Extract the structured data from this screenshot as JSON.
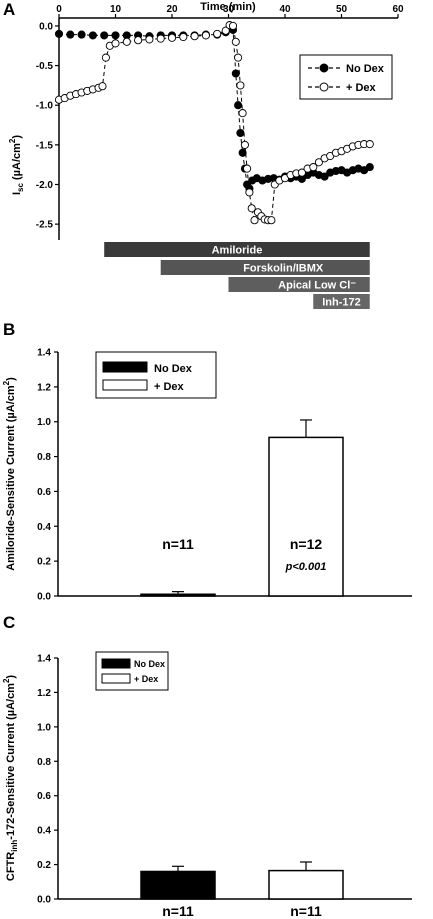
{
  "panels": {
    "a": {
      "letter": "A"
    },
    "b": {
      "letter": "B"
    },
    "c": {
      "letter": "C"
    }
  },
  "chart_data": [
    {
      "type": "line",
      "panel": "A",
      "xlabel": "Time (min)",
      "ylabel_main": "I",
      "ylabel_sub": "sc",
      "ylabel_rest": " (µA/cm",
      "ylabel_sup": "2",
      "ylabel_end": ")",
      "xlim": [
        0,
        60
      ],
      "ylim": [
        -2.7,
        0.1
      ],
      "xticks": [
        "0",
        "10",
        "20",
        "30",
        "40",
        "50",
        "60"
      ],
      "yticks": [
        "0.0",
        "-0.5",
        "-1.0",
        "-1.5",
        "-2.0",
        "-2.5"
      ],
      "grid": false,
      "legend_position": "top-right",
      "series": [
        {
          "name": "No Dex",
          "marker": "filled",
          "points": [
            [
              0,
              -0.1
            ],
            [
              2,
              -0.11
            ],
            [
              4,
              -0.11
            ],
            [
              6,
              -0.12
            ],
            [
              8,
              -0.12
            ],
            [
              10,
              -0.12
            ],
            [
              12,
              -0.12
            ],
            [
              14,
              -0.12
            ],
            [
              16,
              -0.13
            ],
            [
              18,
              -0.12
            ],
            [
              20,
              -0.12
            ],
            [
              22,
              -0.12
            ],
            [
              24,
              -0.12
            ],
            [
              26,
              -0.11
            ],
            [
              28,
              -0.11
            ],
            [
              29.5,
              -0.08
            ],
            [
              30.2,
              -0.02
            ],
            [
              30.8,
              -0.05
            ],
            [
              31.3,
              -0.6
            ],
            [
              31.7,
              -1.0
            ],
            [
              32.1,
              -1.35
            ],
            [
              32.5,
              -1.6
            ],
            [
              32.9,
              -1.8
            ],
            [
              33.3,
              -2.0
            ],
            [
              33.7,
              -2.05
            ],
            [
              34.2,
              -1.95
            ],
            [
              35,
              -1.92
            ],
            [
              36,
              -1.95
            ],
            [
              37,
              -1.93
            ],
            [
              38,
              -1.92
            ],
            [
              39,
              -1.94
            ],
            [
              40,
              -1.9
            ],
            [
              41,
              -1.92
            ],
            [
              42,
              -1.9
            ],
            [
              43,
              -1.93
            ],
            [
              44,
              -1.88
            ],
            [
              45,
              -1.85
            ],
            [
              46,
              -1.88
            ],
            [
              47,
              -1.9
            ],
            [
              48,
              -1.85
            ],
            [
              49,
              -1.83
            ],
            [
              50,
              -1.82
            ],
            [
              51,
              -1.85
            ],
            [
              52,
              -1.82
            ],
            [
              53,
              -1.8
            ],
            [
              54,
              -1.82
            ],
            [
              55,
              -1.78
            ]
          ]
        },
        {
          "name": "+ Dex",
          "marker": "open",
          "points": [
            [
              0,
              -0.93
            ],
            [
              1,
              -0.91
            ],
            [
              2,
              -0.88
            ],
            [
              3,
              -0.86
            ],
            [
              4,
              -0.84
            ],
            [
              5,
              -0.82
            ],
            [
              6,
              -0.8
            ],
            [
              7,
              -0.78
            ],
            [
              7.7,
              -0.76
            ],
            [
              8.3,
              -0.4
            ],
            [
              9,
              -0.25
            ],
            [
              10,
              -0.22
            ],
            [
              12,
              -0.2
            ],
            [
              14,
              -0.18
            ],
            [
              16,
              -0.17
            ],
            [
              18,
              -0.16
            ],
            [
              20,
              -0.15
            ],
            [
              22,
              -0.14
            ],
            [
              24,
              -0.13
            ],
            [
              26,
              -0.12
            ],
            [
              28,
              -0.1
            ],
            [
              29.5,
              -0.06
            ],
            [
              30.2,
              0.01
            ],
            [
              30.8,
              0.0
            ],
            [
              31.3,
              -0.2
            ],
            [
              31.7,
              -0.4
            ],
            [
              32.1,
              -0.75
            ],
            [
              32.5,
              -1.1
            ],
            [
              32.9,
              -1.5
            ],
            [
              33.3,
              -1.8
            ],
            [
              33.7,
              -2.1
            ],
            [
              34.1,
              -2.3
            ],
            [
              34.6,
              -2.45
            ],
            [
              35.2,
              -2.35
            ],
            [
              35.8,
              -2.4
            ],
            [
              36.4,
              -2.44
            ],
            [
              37,
              -2.45
            ],
            [
              37.6,
              -2.45
            ],
            [
              38.2,
              -2.0
            ],
            [
              39,
              -1.95
            ],
            [
              40,
              -1.92
            ],
            [
              41,
              -1.88
            ],
            [
              42,
              -1.86
            ],
            [
              43,
              -1.85
            ],
            [
              44,
              -1.8
            ],
            [
              45,
              -1.78
            ],
            [
              46,
              -1.72
            ],
            [
              47,
              -1.67
            ],
            [
              48,
              -1.64
            ],
            [
              49,
              -1.6
            ],
            [
              50,
              -1.58
            ],
            [
              51,
              -1.55
            ],
            [
              52,
              -1.52
            ],
            [
              53,
              -1.5
            ],
            [
              54,
              -1.49
            ],
            [
              55,
              -1.49
            ]
          ]
        }
      ],
      "treatment_bars": [
        {
          "label": "Amiloride",
          "start": 8,
          "end": 55,
          "color": "#3a3a3a"
        },
        {
          "label": "Forskolin/IBMX",
          "start": 18,
          "end": 55,
          "color": "#555555"
        },
        {
          "label": "Apical Low Cl⁻",
          "start": 30,
          "end": 55,
          "color": "#5e5e5e"
        },
        {
          "label": "Inh-172",
          "start": 45,
          "end": 55,
          "color": "#666666"
        }
      ]
    },
    {
      "type": "bar",
      "panel": "B",
      "ylabel": "Amiloride-Sensitive Current (µA/cm",
      "ylabel_sup": "2",
      "ylabel_end": ")",
      "ylim": [
        0,
        1.4
      ],
      "yticks": [
        "0.0",
        "0.2",
        "0.4",
        "0.6",
        "0.8",
        "1.0",
        "1.2",
        "1.4"
      ],
      "legend_position": "top-left",
      "categories": [
        "No Dex",
        "+ Dex"
      ],
      "values": [
        0.01,
        0.91
      ],
      "errors": [
        0.015,
        0.1
      ],
      "n_labels": [
        "n=11",
        "n=12"
      ],
      "p_label": "p<0.001"
    },
    {
      "type": "bar",
      "panel": "C",
      "ylabel_pre": "CFTR",
      "ylabel_sub": "inh",
      "ylabel_rest": "-172-Sensitive Current (µA/cm",
      "ylabel_sup": "2",
      "ylabel_end": ")",
      "ylim": [
        0,
        1.4
      ],
      "yticks": [
        "0.0",
        "0.2",
        "0.4",
        "0.6",
        "0.8",
        "1.0",
        "1.2",
        "1.4"
      ],
      "legend_position": "top-left",
      "categories": [
        "No Dex",
        "+ Dex"
      ],
      "values": [
        0.16,
        0.165
      ],
      "errors": [
        0.03,
        0.05
      ],
      "n_labels": [
        "n=11",
        "n=11"
      ]
    }
  ]
}
